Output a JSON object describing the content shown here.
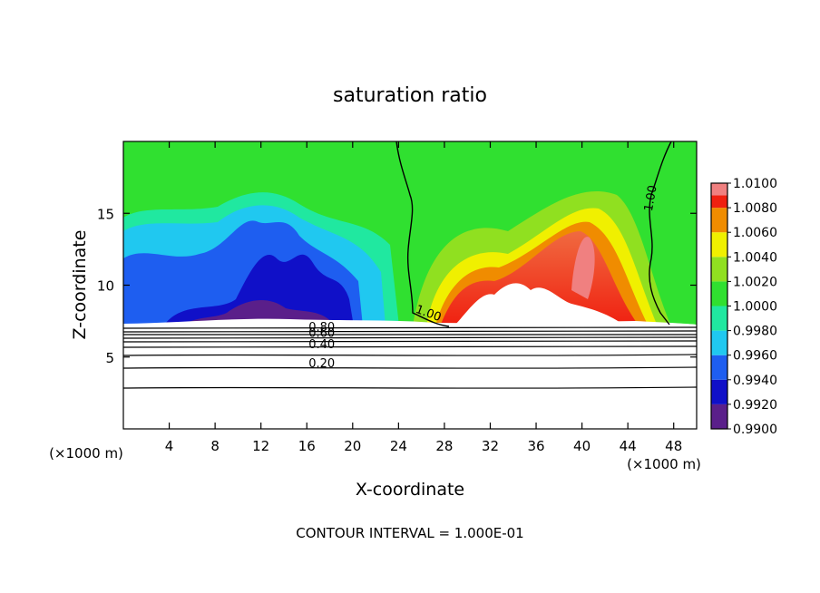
{
  "chart_data": {
    "type": "heatmap",
    "title": "saturation ratio",
    "xlabel": "X-coordinate",
    "ylabel": "Z-coordinate",
    "x_unit_left": "(×1000 m)",
    "x_unit_right": "(×1000 m)",
    "xlim": [
      0,
      50
    ],
    "ylim": [
      0,
      20
    ],
    "x_ticks": [
      4,
      8,
      12,
      16,
      20,
      24,
      28,
      32,
      36,
      40,
      44,
      48
    ],
    "x_tick_labels": [
      "4",
      "8",
      "12",
      "16",
      "20",
      "24",
      "28",
      "32",
      "36",
      "40",
      "44",
      "48"
    ],
    "y_ticks": [
      5,
      10,
      15
    ],
    "y_tick_labels": [
      "5",
      "10",
      "15"
    ],
    "footer": "CONTOUR INTERVAL = 1.000E-01",
    "colorbar": {
      "levels": [
        0.99,
        0.992,
        0.994,
        0.996,
        0.998,
        1.0,
        1.002,
        1.004,
        1.006,
        1.008,
        1.01
      ],
      "labels": [
        "0.9900",
        "0.9920",
        "0.9940",
        "0.9960",
        "0.9980",
        "1.0000",
        "1.0020",
        "1.0040",
        "1.0060",
        "1.0080",
        "1.0100"
      ],
      "colors": [
        "#5a1f8a",
        "#1010c8",
        "#1e5ef0",
        "#20c8f0",
        "#20e8a0",
        "#30e030",
        "#90e020",
        "#f0f000",
        "#f08c00",
        "#f02010",
        "#f08080"
      ]
    },
    "contour_labels": [
      "1.00",
      "1.00",
      "0.80",
      "0.60",
      "0.40",
      "0.20"
    ],
    "contour_label_positions": [
      {
        "label": "1.00",
        "x": 26.5,
        "z": 7.8
      },
      {
        "label": "1.00",
        "x": 46.3,
        "z": 16.0
      },
      {
        "label": "0.80",
        "x": 17.3,
        "z": 6.8
      },
      {
        "label": "0.60",
        "x": 17.3,
        "z": 6.4
      },
      {
        "label": "0.40",
        "x": 17.3,
        "z": 5.6
      },
      {
        "label": "0.20",
        "x": 17.3,
        "z": 4.3
      }
    ],
    "grid": false,
    "legend": "right"
  }
}
